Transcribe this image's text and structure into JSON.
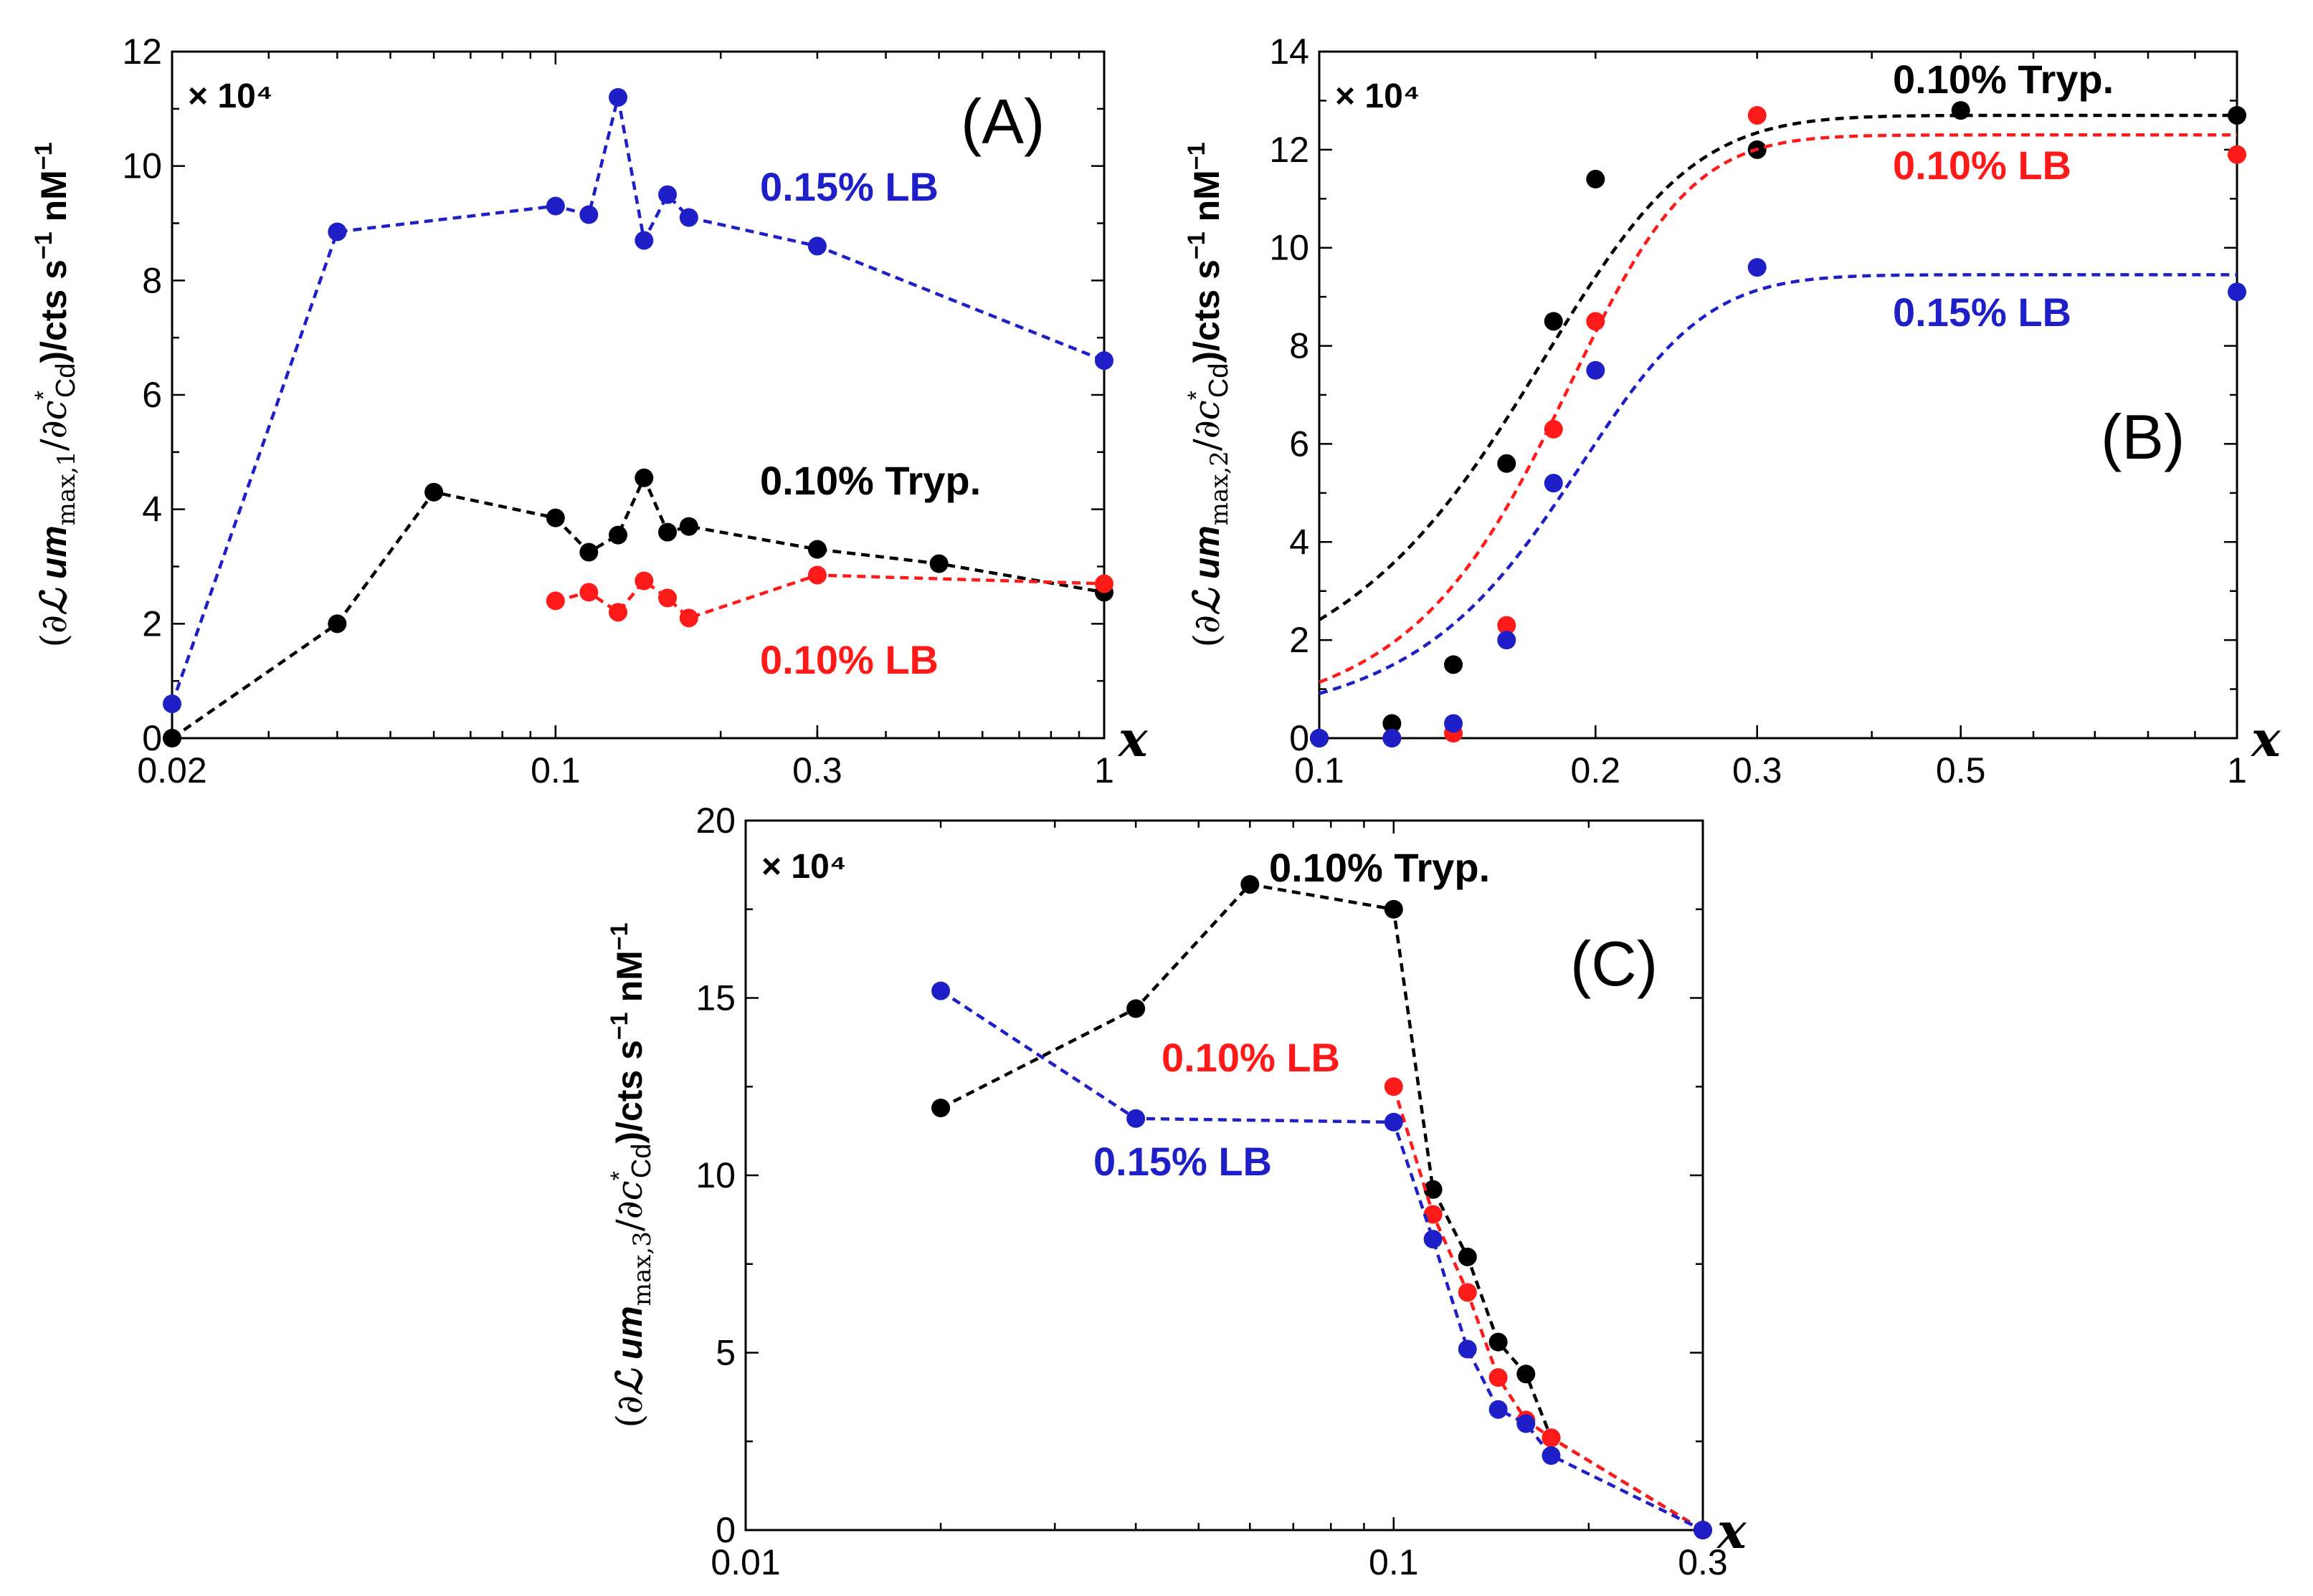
{
  "chart_data": [
    {
      "type": "line",
      "panel_label": "(A)",
      "xscale": "log",
      "xlim": [
        0.02,
        1
      ],
      "ylim": [
        0,
        12
      ],
      "xticks": [
        0.02,
        0.1,
        0.3,
        1
      ],
      "xtick_labels": [
        "0.02",
        "0.1",
        "0.3",
        "1"
      ],
      "yticks": [
        0,
        2,
        4,
        6,
        8,
        10,
        12
      ],
      "ytick_labels": [
        "0",
        "2",
        "4",
        "6",
        "8",
        "10",
        "12"
      ],
      "multiplier": "× 10⁴",
      "xlabel": "x",
      "ylabel": "(∂ℒum max,1/∂c*Cd)/cts s⁻¹ nM⁻¹",
      "ylabel_parts": {
        "open": "(∂",
        "L": "ℒ",
        "um": " um",
        "sub": "max,1",
        "slash": "/∂",
        "c": "c",
        "star": "*",
        "cd": "Cd",
        "close": ")/cts s",
        "exp1": "−1",
        "nm": " nM",
        "exp2": "−1"
      },
      "series": [
        {
          "name": "0.15% LB",
          "color": "#1f1fc8",
          "x": [
            0.02,
            0.04,
            0.1,
            0.115,
            0.13,
            0.145,
            0.16,
            0.175,
            0.3,
            1.0
          ],
          "y": [
            0.6,
            8.85,
            9.3,
            9.15,
            11.2,
            8.7,
            9.5,
            9.1,
            8.6,
            6.6
          ]
        },
        {
          "name": "0.10% Tryp.",
          "color": "#000000",
          "x": [
            0.02,
            0.04,
            0.06,
            0.1,
            0.115,
            0.13,
            0.145,
            0.16,
            0.175,
            0.3,
            0.5,
            1.0
          ],
          "y": [
            0.0,
            2.0,
            4.3,
            3.85,
            3.25,
            3.55,
            4.55,
            3.6,
            3.7,
            3.3,
            3.05,
            2.55
          ]
        },
        {
          "name": "0.10% LB",
          "color": "#ff1a1a",
          "x": [
            0.1,
            0.115,
            0.13,
            0.145,
            0.16,
            0.175,
            0.3,
            1.0
          ],
          "y": [
            2.4,
            2.55,
            2.2,
            2.75,
            2.45,
            2.1,
            2.85,
            2.7
          ]
        }
      ]
    },
    {
      "type": "line",
      "panel_label": "(B)",
      "xscale": "log",
      "xlim": [
        0.1,
        1
      ],
      "ylim": [
        0,
        14
      ],
      "xticks": [
        0.1,
        0.2,
        0.3,
        0.5,
        1
      ],
      "xtick_labels": [
        "0.1",
        "0.2",
        "0.3",
        "0.5",
        "1"
      ],
      "yticks": [
        0,
        2,
        4,
        6,
        8,
        10,
        12,
        14
      ],
      "ytick_labels": [
        "0",
        "2",
        "4",
        "6",
        "8",
        "10",
        "12",
        "14"
      ],
      "multiplier": "× 10⁴",
      "xlabel": "x",
      "ylabel": "(∂ℒum max,2/∂c*Cd)/cts s⁻¹ nM⁻¹",
      "ylabel_parts": {
        "open": "(∂",
        "L": "ℒ",
        "um": " um",
        "sub": "max,2",
        "slash": "/∂",
        "c": "c",
        "star": "*",
        "cd": "Cd",
        "close": ")/cts s",
        "exp1": "−1",
        "nm": " nM",
        "exp2": "−1"
      },
      "series": [
        {
          "name": "0.10% Tryp.",
          "color": "#000000",
          "x": [
            0.1,
            0.12,
            0.14,
            0.16,
            0.18,
            0.2,
            0.3,
            0.5,
            1.0
          ],
          "y": [
            0.0,
            0.3,
            1.5,
            5.6,
            8.5,
            11.4,
            12.0,
            12.8,
            12.7
          ],
          "fit": {
            "plateau": 12.7,
            "x0": 0.158,
            "k": 25
          }
        },
        {
          "name": "0.10% LB",
          "color": "#ff1a1a",
          "x": [
            0.12,
            0.14,
            0.16,
            0.18,
            0.2,
            0.3,
            1.0
          ],
          "y": [
            0.0,
            0.1,
            2.3,
            6.3,
            8.5,
            12.7,
            11.9
          ],
          "fit": {
            "plateau": 12.3,
            "x0": 0.176,
            "k": 30
          }
        },
        {
          "name": "0.15% LB",
          "color": "#1f1fc8",
          "x": [
            0.1,
            0.12,
            0.14,
            0.16,
            0.18,
            0.2,
            0.3,
            1.0
          ],
          "y": [
            0.0,
            0.0,
            0.3,
            2.0,
            5.2,
            7.5,
            9.6,
            9.1
          ],
          "fit": {
            "plateau": 9.45,
            "x0": 0.18,
            "k": 28
          }
        }
      ]
    },
    {
      "type": "line",
      "panel_label": "(C)",
      "xscale": "log",
      "xlim": [
        0.01,
        0.3
      ],
      "ylim": [
        0,
        20
      ],
      "xticks": [
        0.01,
        0.1,
        0.3
      ],
      "xtick_labels": [
        "0.01",
        "0.1",
        "0.3"
      ],
      "yticks": [
        0,
        5,
        10,
        15,
        20
      ],
      "ytick_labels": [
        "0",
        "5",
        "10",
        "15",
        "20"
      ],
      "multiplier": "× 10⁴",
      "xlabel": "x",
      "ylabel": "(∂ℒum max,3/∂c*Cd)/cts s⁻¹ nM⁻¹",
      "ylabel_parts": {
        "open": "(∂",
        "L": "ℒ",
        "um": " um",
        "sub": "max,3",
        "slash": "/∂",
        "c": "c",
        "star": "*",
        "cd": "Cd",
        "close": ")/cts s",
        "exp1": "−1",
        "nm": " nM",
        "exp2": "−1"
      },
      "series": [
        {
          "name": "0.10% Tryp.",
          "color": "#000000",
          "x": [
            0.02,
            0.04,
            0.06,
            0.1,
            0.115,
            0.13,
            0.145,
            0.16,
            0.175,
            0.3
          ],
          "y": [
            11.9,
            14.7,
            18.2,
            17.5,
            9.6,
            7.7,
            5.3,
            4.4,
            2.6,
            0.0
          ]
        },
        {
          "name": "0.10% LB",
          "color": "#ff1a1a",
          "x": [
            0.1,
            0.115,
            0.13,
            0.145,
            0.16,
            0.175,
            0.3
          ],
          "y": [
            12.5,
            8.9,
            6.7,
            4.3,
            3.1,
            2.6,
            0.0
          ]
        },
        {
          "name": "0.15% LB",
          "color": "#1f1fc8",
          "x": [
            0.02,
            0.04,
            0.1,
            0.115,
            0.13,
            0.145,
            0.16,
            0.175,
            0.3
          ],
          "y": [
            15.2,
            11.6,
            11.5,
            8.2,
            5.1,
            3.4,
            3.0,
            2.1,
            0.0
          ]
        }
      ]
    }
  ]
}
